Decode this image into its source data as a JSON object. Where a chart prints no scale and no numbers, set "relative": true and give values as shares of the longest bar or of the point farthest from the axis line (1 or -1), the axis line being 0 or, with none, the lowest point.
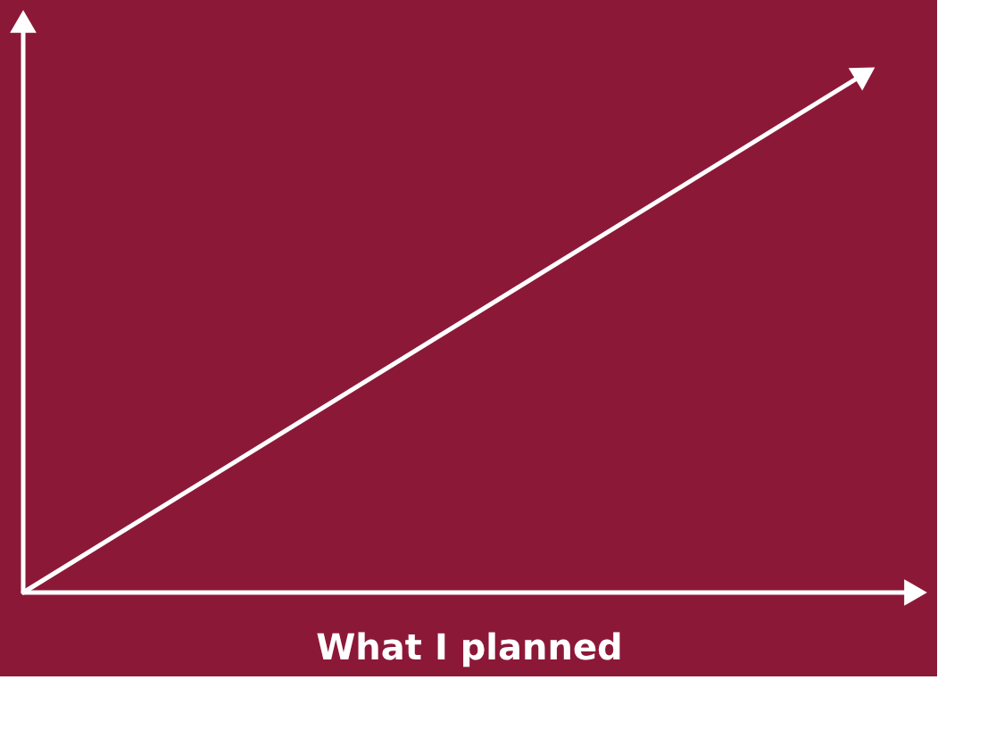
{
  "chart_data": {
    "type": "line",
    "relative": true,
    "title": "What I planned",
    "categories": [
      null,
      null
    ],
    "values": [
      0,
      1
    ],
    "color": "#ffffff"
  }
}
